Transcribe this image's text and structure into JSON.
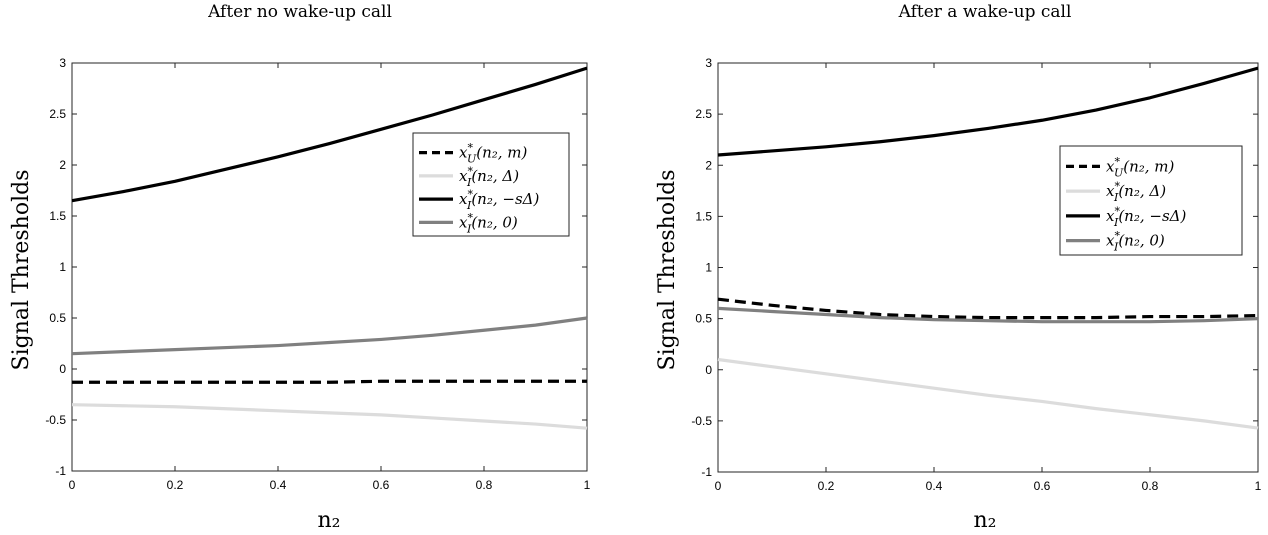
{
  "chart_data": [
    {
      "type": "line",
      "title": "After no wake-up call",
      "xlabel": "n₂",
      "ylabel": "Signal Thresholds",
      "xlim": [
        0,
        1
      ],
      "ylim": [
        -1,
        3
      ],
      "xticks": [
        0,
        0.2,
        0.4,
        0.6,
        0.8,
        1
      ],
      "xtick_labels": [
        "0",
        "0.2",
        "0.4",
        "0.6",
        "0.8",
        "1"
      ],
      "yticks": [
        -1,
        -0.5,
        0,
        0.5,
        1,
        1.5,
        2,
        2.5,
        3
      ],
      "ytick_labels": [
        "-1",
        "-0.5",
        "0",
        "0.5",
        "1",
        "1.5",
        "2",
        "2.5",
        "3"
      ],
      "grid": false,
      "legend_position": "upper-right",
      "x": [
        0,
        0.1,
        0.2,
        0.3,
        0.4,
        0.5,
        0.6,
        0.7,
        0.8,
        0.9,
        1
      ],
      "series": [
        {
          "name": "x*U(n₂, m)",
          "color": "#000000",
          "dash": "dashed",
          "values": [
            -0.13,
            -0.13,
            -0.13,
            -0.13,
            -0.13,
            -0.13,
            -0.12,
            -0.12,
            -0.12,
            -0.12,
            -0.12
          ]
        },
        {
          "name": "x*I(n₂, Δ)",
          "color": "#dcdcdc",
          "dash": "solid",
          "values": [
            -0.35,
            -0.36,
            -0.37,
            -0.39,
            -0.41,
            -0.43,
            -0.45,
            -0.48,
            -0.51,
            -0.54,
            -0.58
          ]
        },
        {
          "name": "x*I(n₂, −sΔ)",
          "color": "#000000",
          "dash": "solid",
          "values": [
            1.65,
            1.74,
            1.84,
            1.96,
            2.08,
            2.21,
            2.35,
            2.49,
            2.64,
            2.79,
            2.95
          ]
        },
        {
          "name": "x*I(n₂, 0)",
          "color": "#808080",
          "dash": "solid",
          "values": [
            0.15,
            0.17,
            0.19,
            0.21,
            0.23,
            0.26,
            0.29,
            0.33,
            0.38,
            0.43,
            0.5
          ]
        }
      ]
    },
    {
      "type": "line",
      "title": "After a wake-up call",
      "xlabel": "n₂",
      "ylabel": "Signal Thresholds",
      "xlim": [
        0,
        1
      ],
      "ylim": [
        -1,
        3
      ],
      "xticks": [
        0,
        0.2,
        0.4,
        0.6,
        0.8,
        1
      ],
      "xtick_labels": [
        "0",
        "0.2",
        "0.4",
        "0.6",
        "0.8",
        "1"
      ],
      "yticks": [
        -1,
        -0.5,
        0,
        0.5,
        1,
        1.5,
        2,
        2.5,
        3
      ],
      "ytick_labels": [
        "-1",
        "-0.5",
        "0",
        "0.5",
        "1",
        "1.5",
        "2",
        "2.5",
        "3"
      ],
      "grid": false,
      "legend_position": "upper-right",
      "x": [
        0,
        0.1,
        0.2,
        0.3,
        0.4,
        0.5,
        0.6,
        0.7,
        0.8,
        0.9,
        1
      ],
      "series": [
        {
          "name": "x*U(n₂, m)",
          "color": "#000000",
          "dash": "dashed",
          "values": [
            0.69,
            0.63,
            0.58,
            0.54,
            0.52,
            0.51,
            0.51,
            0.51,
            0.52,
            0.52,
            0.53
          ]
        },
        {
          "name": "x*I(n₂, Δ)",
          "color": "#dcdcdc",
          "dash": "solid",
          "values": [
            0.1,
            0.03,
            -0.04,
            -0.11,
            -0.18,
            -0.25,
            -0.31,
            -0.38,
            -0.44,
            -0.5,
            -0.57
          ]
        },
        {
          "name": "x*I(n₂, −sΔ)",
          "color": "#000000",
          "dash": "solid",
          "values": [
            2.1,
            2.14,
            2.18,
            2.23,
            2.29,
            2.36,
            2.44,
            2.54,
            2.66,
            2.8,
            2.95
          ]
        },
        {
          "name": "x*I(n₂, 0)",
          "color": "#808080",
          "dash": "solid",
          "values": [
            0.6,
            0.57,
            0.54,
            0.51,
            0.49,
            0.48,
            0.47,
            0.47,
            0.47,
            0.48,
            0.5
          ]
        }
      ]
    }
  ]
}
